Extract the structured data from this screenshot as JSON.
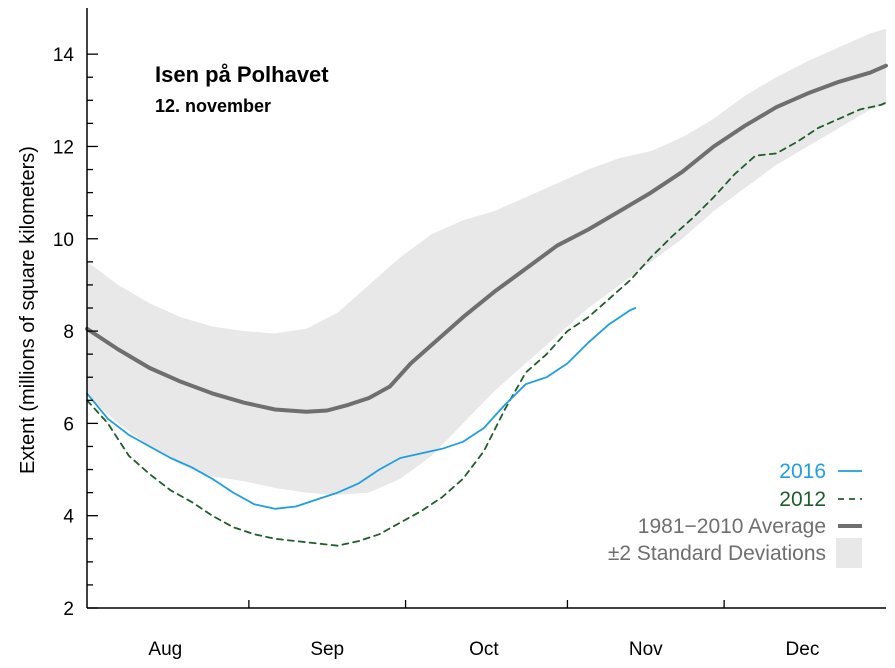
{
  "chart_data": {
    "type": "line",
    "title": "Isen på Polhavet",
    "subtitle": "12. november",
    "ylabel": "Extent (millions of square kilometers)",
    "xlabel": "",
    "ylim": [
      2,
      15
    ],
    "xlim": [
      0,
      153
    ],
    "y_ticks": [
      2,
      4,
      6,
      8,
      10,
      12,
      14
    ],
    "month_labels": [
      "Aug",
      "Sep",
      "Oct",
      "Nov",
      "Dec"
    ],
    "month_label_x": [
      15,
      46,
      76,
      107,
      137
    ],
    "month_boundaries": [
      31,
      61,
      92,
      122
    ],
    "grid": false,
    "legend_position": "bottom-right",
    "series": [
      {
        "name": "±2 Standard Deviations",
        "kind": "band",
        "color": "#e8e8e8",
        "x": [
          0,
          6,
          12,
          18,
          24,
          30,
          36,
          42,
          48,
          54,
          60,
          66,
          72,
          78,
          84,
          90,
          96,
          102,
          108,
          114,
          120,
          126,
          132,
          138,
          144,
          150,
          153
        ],
        "lower": [
          6.6,
          6.0,
          5.5,
          5.1,
          4.85,
          4.75,
          4.6,
          4.5,
          4.45,
          4.5,
          4.8,
          5.3,
          6.0,
          6.7,
          7.3,
          7.9,
          8.5,
          9.0,
          9.5,
          10.0,
          10.6,
          11.1,
          11.6,
          12.0,
          12.4,
          12.8,
          12.9
        ],
        "upper": [
          9.5,
          9.0,
          8.6,
          8.3,
          8.1,
          8.0,
          7.95,
          8.05,
          8.4,
          9.0,
          9.6,
          10.1,
          10.4,
          10.6,
          10.9,
          11.2,
          11.5,
          11.75,
          11.9,
          12.2,
          12.6,
          13.1,
          13.5,
          13.85,
          14.15,
          14.45,
          14.55
        ]
      },
      {
        "name": "1981−2010 Average",
        "kind": "line",
        "color": "#6f6f6f",
        "dash": "",
        "width": 4,
        "x": [
          0,
          6,
          12,
          18,
          24,
          30,
          36,
          42,
          46,
          50,
          54,
          58,
          62,
          66,
          72,
          78,
          84,
          90,
          96,
          102,
          108,
          114,
          120,
          126,
          132,
          138,
          144,
          150,
          153
        ],
        "y": [
          8.05,
          7.6,
          7.2,
          6.9,
          6.65,
          6.45,
          6.3,
          6.25,
          6.28,
          6.4,
          6.55,
          6.8,
          7.3,
          7.7,
          8.3,
          8.85,
          9.35,
          9.85,
          10.2,
          10.6,
          11.0,
          11.45,
          12.0,
          12.45,
          12.85,
          13.15,
          13.4,
          13.6,
          13.75
        ]
      },
      {
        "name": "2012",
        "kind": "line",
        "color": "#1f5e2a",
        "dash": "6,5",
        "width": 1.8,
        "x": [
          0,
          4,
          8,
          12,
          16,
          20,
          24,
          28,
          32,
          36,
          40,
          44,
          48,
          52,
          56,
          60,
          64,
          68,
          72,
          76,
          80,
          84,
          88,
          92,
          96,
          100,
          104,
          108,
          112,
          116,
          120,
          124,
          128,
          132,
          136,
          140,
          144,
          148,
          152,
          153
        ],
        "y": [
          6.5,
          6.0,
          5.3,
          4.9,
          4.55,
          4.3,
          4.0,
          3.75,
          3.6,
          3.5,
          3.45,
          3.4,
          3.35,
          3.45,
          3.6,
          3.85,
          4.1,
          4.4,
          4.8,
          5.4,
          6.3,
          7.1,
          7.5,
          8.0,
          8.3,
          8.7,
          9.1,
          9.6,
          10.05,
          10.45,
          10.9,
          11.4,
          11.8,
          11.85,
          12.1,
          12.4,
          12.6,
          12.8,
          12.9,
          12.95
        ]
      },
      {
        "name": "2016",
        "kind": "line",
        "color": "#1f9ee0",
        "dash": "",
        "width": 1.8,
        "x": [
          0,
          4,
          8,
          12,
          16,
          20,
          24,
          28,
          32,
          36,
          40,
          44,
          48,
          52,
          56,
          60,
          64,
          68,
          72,
          76,
          80,
          84,
          88,
          92,
          96,
          100,
          104,
          105
        ],
        "y": [
          6.65,
          6.1,
          5.75,
          5.5,
          5.25,
          5.05,
          4.8,
          4.5,
          4.25,
          4.15,
          4.2,
          4.35,
          4.5,
          4.7,
          5.0,
          5.25,
          5.35,
          5.45,
          5.6,
          5.9,
          6.4,
          6.85,
          7.0,
          7.3,
          7.75,
          8.15,
          8.45,
          8.5
        ]
      }
    ]
  },
  "legend": {
    "entries": [
      {
        "label": "2016",
        "color": "#1f9ee0",
        "style": "solid-thin"
      },
      {
        "label": "2012",
        "color": "#1f5e2a",
        "style": "dashed"
      },
      {
        "label": "1981−2010 Average",
        "color": "#6f6f6f",
        "style": "solid-thick"
      },
      {
        "label": "±2 Standard Deviations",
        "color": "#6f6f6f",
        "style": "band",
        "swatch": "#e8e8e8"
      }
    ]
  }
}
